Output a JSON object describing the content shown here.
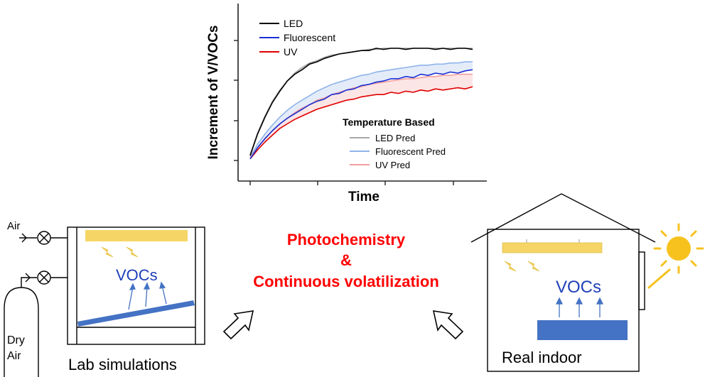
{
  "chart_data": {
    "type": "line",
    "title": "",
    "xlabel": "Time",
    "ylabel": "Increment of V/VOCs",
    "x_ticks_labeled": false,
    "y_ticks_labeled": false,
    "x": [
      0,
      1,
      2,
      3,
      4,
      5,
      6,
      7,
      8,
      9,
      10,
      11,
      12,
      13,
      14,
      15,
      16,
      17,
      18,
      19,
      20,
      21,
      22,
      23,
      24,
      25,
      26,
      27,
      28,
      29,
      30
    ],
    "series": [
      {
        "name": "LED",
        "color": "#000000",
        "values": [
          0.05,
          0.24,
          0.39,
          0.52,
          0.62,
          0.71,
          0.77,
          0.81,
          0.86,
          0.88,
          0.91,
          0.93,
          0.95,
          0.96,
          0.97,
          0.98,
          0.98,
          1.0,
          0.99,
          1.0,
          1.0,
          0.99,
          1.0,
          1.0,
          1.0,
          0.99,
          1.0,
          0.99,
          1.0,
          1.0,
          0.99
        ]
      },
      {
        "name": "Fluorescent",
        "color": "#1a2fd1",
        "values": [
          0.02,
          0.12,
          0.2,
          0.27,
          0.33,
          0.38,
          0.42,
          0.46,
          0.5,
          0.53,
          0.55,
          0.59,
          0.6,
          0.63,
          0.64,
          0.67,
          0.68,
          0.7,
          0.71,
          0.73,
          0.73,
          0.75,
          0.74,
          0.77,
          0.76,
          0.78,
          0.77,
          0.79,
          0.78,
          0.8,
          0.81
        ]
      },
      {
        "name": "UV",
        "color": "#e00000",
        "values": [
          0.02,
          0.1,
          0.17,
          0.23,
          0.29,
          0.33,
          0.37,
          0.4,
          0.43,
          0.46,
          0.48,
          0.5,
          0.52,
          0.54,
          0.55,
          0.57,
          0.58,
          0.59,
          0.59,
          0.61,
          0.6,
          0.62,
          0.61,
          0.63,
          0.62,
          0.64,
          0.63,
          0.64,
          0.65,
          0.64,
          0.66
        ]
      }
    ],
    "pred_series": [
      {
        "name": "LED Pred",
        "color": "#a8a8a8",
        "values": [
          0.06,
          0.25,
          0.4,
          0.53,
          0.63,
          0.71,
          0.78,
          0.83,
          0.87,
          0.89,
          0.92,
          0.94,
          0.95,
          0.96,
          0.97,
          0.98,
          0.99,
          0.99,
          1.0,
          1.0,
          1.0,
          1.0,
          1.0,
          1.0,
          1.0,
          1.0,
          1.0,
          1.0,
          1.0,
          1.0,
          1.0
        ]
      },
      {
        "name": "Fluorescent Pred",
        "color": "#8fb4ea",
        "values": [
          0.04,
          0.15,
          0.24,
          0.32,
          0.39,
          0.45,
          0.5,
          0.54,
          0.58,
          0.62,
          0.65,
          0.68,
          0.7,
          0.72,
          0.74,
          0.76,
          0.77,
          0.79,
          0.8,
          0.81,
          0.82,
          0.83,
          0.84,
          0.85,
          0.85,
          0.86,
          0.86,
          0.87,
          0.87,
          0.88,
          0.88
        ]
      },
      {
        "name": "UV Pred",
        "color": "#f2a0a0",
        "values": [
          0.03,
          0.12,
          0.2,
          0.27,
          0.33,
          0.38,
          0.43,
          0.47,
          0.5,
          0.54,
          0.56,
          0.59,
          0.61,
          0.63,
          0.65,
          0.66,
          0.68,
          0.69,
          0.7,
          0.71,
          0.72,
          0.73,
          0.73,
          0.74,
          0.75,
          0.75,
          0.76,
          0.76,
          0.77,
          0.77,
          0.77
        ]
      }
    ],
    "legend_top": [
      "LED",
      "Fluorescent",
      "UV"
    ],
    "legend_bottom_title": "Temperature Based",
    "legend_bottom": [
      "LED Pred",
      "Fluorescent Pred",
      "UV Pred"
    ],
    "grid": false,
    "legend_placement": "top-left and bottom-right"
  },
  "diagram": {
    "center_line1": "Photochemistry",
    "center_line2": "&",
    "center_line3": "Continuous volatilization",
    "lab_caption": "Lab simulations",
    "air_label": "Air",
    "dry_label1": "Dry",
    "dry_label2": "Air",
    "lab_vocs": "VOCs",
    "indoor_vocs": "VOCs",
    "indoor_caption": "Real indoor",
    "colors": {
      "accent_red": "#ff0000",
      "vocs_blue": "#1f3fb8",
      "lamp_yellow": "#f5d565",
      "surface_blue": "#4472c4",
      "sun": "#f7c21e"
    }
  }
}
